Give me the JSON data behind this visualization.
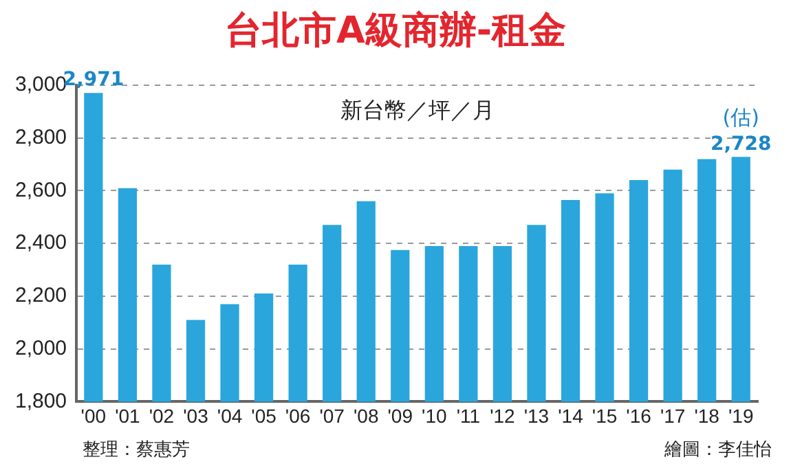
{
  "chart_data": {
    "type": "bar",
    "title": "台北市A級商辦-租金",
    "categories": [
      "'00",
      "'01",
      "'02",
      "'03",
      "'04",
      "'05",
      "'06",
      "'07",
      "'08",
      "'09",
      "'10",
      "'11",
      "'12",
      "'13",
      "'14",
      "'15",
      "'16",
      "'17",
      "'18",
      "'19"
    ],
    "values": [
      2971,
      2610,
      2320,
      2110,
      2170,
      2210,
      2320,
      2470,
      2560,
      2375,
      2390,
      2390,
      2390,
      2470,
      2565,
      2590,
      2640,
      2680,
      2720,
      2728
    ],
    "value_labels": [
      "2,971",
      null,
      null,
      null,
      null,
      null,
      null,
      null,
      null,
      null,
      null,
      null,
      null,
      null,
      null,
      null,
      null,
      null,
      null,
      "2,728"
    ],
    "color": "#2aa6dc",
    "ylim": [
      1800,
      3000
    ],
    "yticks": [
      {
        "value": 1800,
        "label": "1,800"
      },
      {
        "value": 2000,
        "label": "2,000"
      },
      {
        "value": 2200,
        "label": "2,200"
      },
      {
        "value": 2400,
        "label": "2,400"
      },
      {
        "value": 2600,
        "label": "2,600"
      },
      {
        "value": 2800,
        "label": "2,800"
      },
      {
        "value": 3000,
        "label": "3,000"
      }
    ],
    "grid": "y",
    "annotations": [
      "新台幣／坪／月",
      {
        "text": "(估)",
        "x": "'19",
        "y": 2728
      },
      "整理：蔡惠芳",
      "繪圖：李佳怡"
    ]
  }
}
